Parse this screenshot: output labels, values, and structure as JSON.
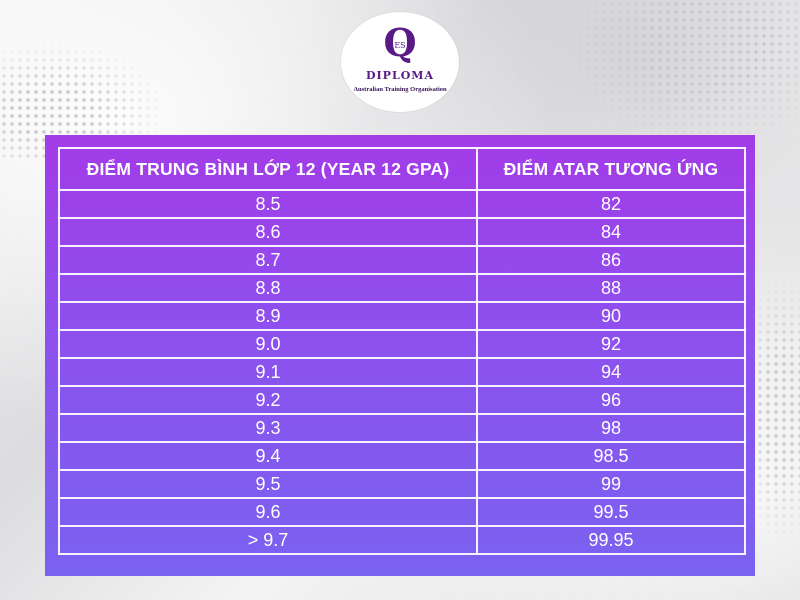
{
  "logo": {
    "mark": "Q",
    "mark_inner": "ES",
    "title": "DIPLOMA",
    "subtitle": "Australian Training Organisation",
    "color": "#5a1a86"
  },
  "table": {
    "headers": [
      "ĐIỂM TRUNG BÌNH LỚP 12 (YEAR 12 GPA)",
      "ĐIỂM ATAR TƯƠNG ỨNG"
    ],
    "rows": [
      [
        "8.5",
        "82"
      ],
      [
        "8.6",
        "84"
      ],
      [
        "8.7",
        "86"
      ],
      [
        "8.8",
        "88"
      ],
      [
        "8.9",
        "90"
      ],
      [
        "9.0",
        "92"
      ],
      [
        "9.1",
        "94"
      ],
      [
        "9.2",
        "96"
      ],
      [
        "9.3",
        "98"
      ],
      [
        "9.4",
        "98.5"
      ],
      [
        "9.5",
        "99"
      ],
      [
        "9.6",
        "99.5"
      ],
      [
        "> 9.7",
        "99.95"
      ]
    ],
    "gradient_top": "#a33be8",
    "gradient_bottom": "#7a62f1"
  }
}
